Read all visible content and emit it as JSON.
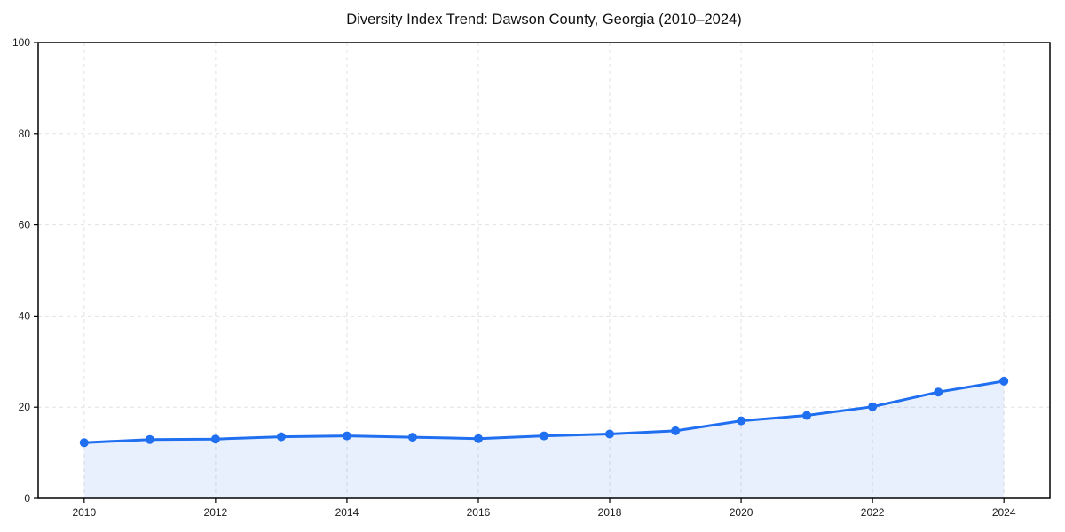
{
  "chart_data": {
    "type": "line",
    "title": "Diversity Index Trend: Dawson County, Georgia (2010–2024)",
    "x": [
      2010,
      2011,
      2012,
      2013,
      2014,
      2015,
      2016,
      2017,
      2018,
      2019,
      2020,
      2021,
      2022,
      2023,
      2024
    ],
    "values": [
      12.2,
      12.9,
      13.0,
      13.5,
      13.7,
      13.4,
      13.1,
      13.7,
      14.1,
      14.8,
      17.0,
      18.2,
      20.1,
      23.3,
      25.7
    ],
    "xticks": [
      2010,
      2012,
      2014,
      2016,
      2018,
      2020,
      2022,
      2024
    ],
    "yticks": [
      0,
      20,
      40,
      60,
      80,
      100
    ],
    "xlim": [
      2009.3,
      2024.7
    ],
    "ylim": [
      0,
      100
    ],
    "grid": "dashed",
    "legend": "none",
    "marker": "circle",
    "colors": {
      "line": "#1f6ff0",
      "fill": "rgba(31,111,240,0.10)",
      "grid": "#e2e2e2",
      "spine": "#000000",
      "tick_text": "#1a1a1a",
      "title_text": "#111111"
    }
  }
}
